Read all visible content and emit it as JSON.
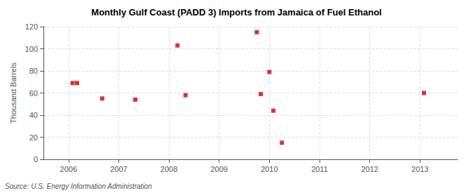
{
  "chart_data": {
    "type": "scatter",
    "title": "Monthly Gulf Coast (PADD 3) Imports from Jamaica of Fuel Ethanol",
    "ylabel": "Thousand Barrels",
    "annotation": "Source: U.S. Energy Information Administration",
    "x": [
      2006.08,
      2006.17,
      2006.67,
      2007.33,
      2008.17,
      2008.33,
      2009.75,
      2009.83,
      2010.0,
      2010.08,
      2010.25,
      2013.08
    ],
    "values": [
      69,
      69,
      55,
      54,
      103,
      58,
      115,
      59,
      79,
      44,
      15,
      60
    ],
    "color": "#cc0000",
    "marker": "square",
    "xlim": [
      2005.5,
      2013.75
    ],
    "xticks": [
      2006,
      2007,
      2008,
      2009,
      2010,
      2011,
      2012,
      2013
    ],
    "ylim": [
      0,
      120
    ],
    "yticks": [
      0,
      20,
      40,
      60,
      80,
      100,
      120
    ],
    "grid": true
  }
}
